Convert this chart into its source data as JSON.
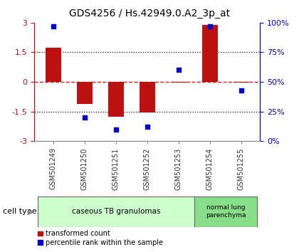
{
  "title": "GDS4256 / Hs.42949.0.A2_3p_at",
  "samples": [
    "GSM501249",
    "GSM501250",
    "GSM501251",
    "GSM501252",
    "GSM501253",
    "GSM501254",
    "GSM501255"
  ],
  "transformed_count": [
    1.75,
    -1.1,
    -1.75,
    -1.55,
    -0.05,
    2.9,
    -0.05
  ],
  "percentile_rank": [
    97,
    20,
    10,
    12,
    60,
    97,
    43
  ],
  "ylim_left": [
    -3,
    3
  ],
  "ylim_right": [
    0,
    100
  ],
  "yticks_left": [
    -3,
    -1.5,
    0,
    1.5,
    3
  ],
  "yticks_right": [
    0,
    25,
    50,
    75,
    100
  ],
  "ytick_labels_left": [
    "-3",
    "-1.5",
    "0",
    "1.5",
    "3"
  ],
  "ytick_labels_right": [
    "0%",
    "25%",
    "50%",
    "75%",
    "100%"
  ],
  "bar_color": "#bb1111",
  "dot_color": "#0000cc",
  "hline_color": "#cc2222",
  "dotted_color": "#111111",
  "bg_color": "#ffffff",
  "group1_label": "caseous TB granulomas",
  "group1_color": "#ccffcc",
  "group1_samples": [
    0,
    1,
    2,
    3,
    4
  ],
  "group2_label": "normal lung\nparenchyma",
  "group2_color": "#88dd88",
  "group2_samples": [
    5,
    6
  ],
  "cell_type_label": "cell type",
  "legend_red": "transformed count",
  "legend_blue": "percentile rank within the sample",
  "bar_width": 0.5
}
